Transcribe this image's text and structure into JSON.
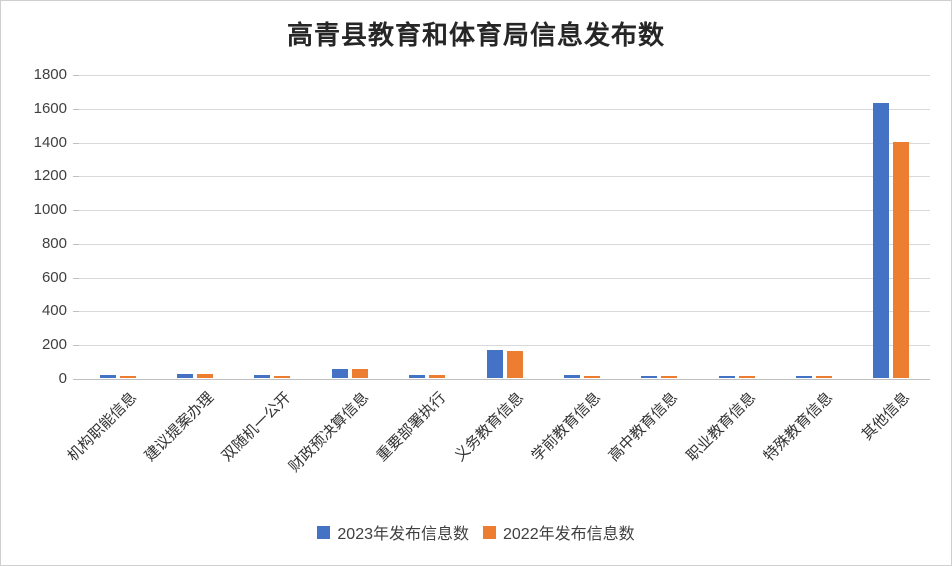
{
  "title": "高青县教育和体育局信息发布数",
  "colors": {
    "series_2023": "#4472C4",
    "series_2022": "#ED7D31",
    "gridline": "#D9D9D9",
    "axis_line": "#BFBFBF",
    "tick_label_color": "#404040",
    "title_color": "#262626",
    "background": "#FFFFFF"
  },
  "chart_data": {
    "type": "bar",
    "title": "高青县教育和体育局信息发布数",
    "categories": [
      "机构职能信息",
      "建议提案办理",
      "双随机一公开",
      "财政预决算信息",
      "重要部署执行",
      "义务教育信息",
      "学前教育信息",
      "高中教育信息",
      "职业教育信息",
      "特殊教育信息",
      "其他信息"
    ],
    "series": [
      {
        "name": "2023年发布信息数",
        "color": "#4472C4",
        "values": [
          20,
          25,
          15,
          55,
          20,
          165,
          20,
          12,
          12,
          12,
          1630
        ]
      },
      {
        "name": "2022年发布信息数",
        "color": "#ED7D31",
        "values": [
          12,
          22,
          10,
          52,
          18,
          160,
          12,
          10,
          10,
          10,
          1400
        ]
      }
    ],
    "xlabel": "",
    "ylabel": "",
    "ylim": [
      0,
      1800
    ],
    "yticks": [
      0,
      200,
      400,
      600,
      800,
      1000,
      1200,
      1400,
      1600,
      1800
    ],
    "grid": true,
    "legend_position": "bottom"
  }
}
